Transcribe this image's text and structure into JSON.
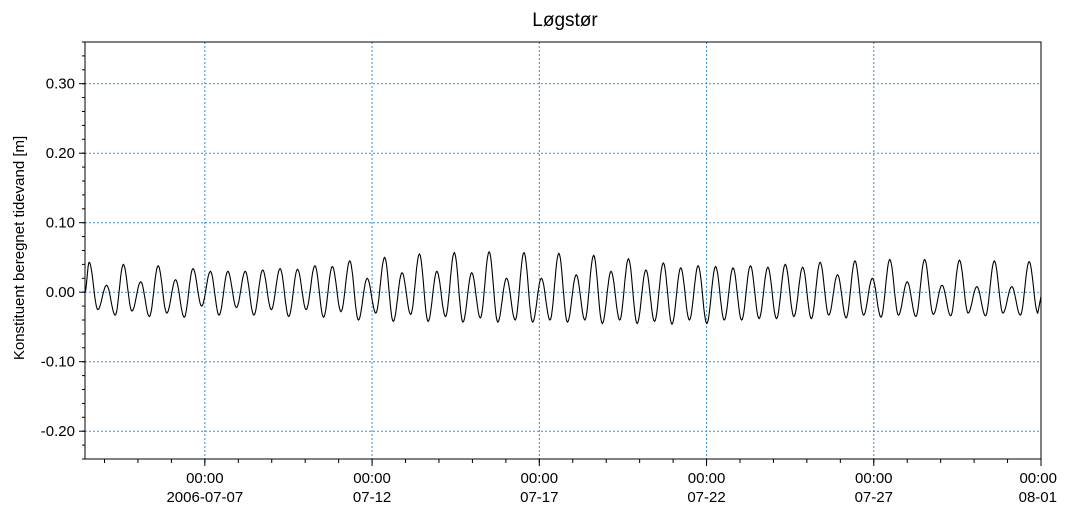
{
  "chart_data": {
    "type": "line",
    "title": "Løgstør",
    "xlabel": "",
    "ylabel": "Konstituent beregnet tidevand [m]",
    "x_range": [
      "2006-07-03T10:00",
      "2006-08-01T00:00"
    ],
    "ylim": [
      -0.24,
      0.36
    ],
    "y_ticks": [
      -0.2,
      -0.1,
      0.0,
      0.1,
      0.2,
      0.3
    ],
    "y_tick_labels": [
      "-0.20",
      "-0.10",
      "0.00",
      "0.10",
      "0.20",
      "0.30"
    ],
    "x_ticks": [
      {
        "date": "2006-07-07T00:00",
        "time": "00:00",
        "label": "2006-07-07"
      },
      {
        "date": "2006-07-12T00:00",
        "time": "00:00",
        "label": "07-12"
      },
      {
        "date": "2006-07-17T00:00",
        "time": "00:00",
        "label": "07-17"
      },
      {
        "date": "2006-07-22T00:00",
        "time": "00:00",
        "label": "07-22"
      },
      {
        "date": "2006-07-27T00:00",
        "time": "00:00",
        "label": "07-27"
      },
      {
        "date": "2006-08-01T00:00",
        "time": "00:00",
        "label": "08-01"
      }
    ],
    "grid": true,
    "legend": "none",
    "colors": {
      "line": "#000000",
      "grid": "#3a8fd9",
      "axes": "#000000"
    },
    "series": [
      {
        "values_description_free": true,
        "x": [
          "2006-07-03T13:00",
          "2006-07-04T01:30",
          "2006-07-04T13:30",
          "2006-07-05T02:00",
          "2006-07-05T14:30",
          "2006-07-06T03:00",
          "2006-07-06T15:30",
          "2006-07-07T04:00",
          "2006-07-07T16:30",
          "2006-07-08T05:00",
          "2006-07-08T17:30",
          "2006-07-09T06:00",
          "2006-07-09T18:30",
          "2006-07-10T07:00",
          "2006-07-10T19:30",
          "2006-07-11T08:00",
          "2006-07-11T20:30",
          "2006-07-12T09:00",
          "2006-07-12T21:30",
          "2006-07-13T10:00",
          "2006-07-13T22:30",
          "2006-07-14T11:00",
          "2006-07-14T23:30",
          "2006-07-15T12:00",
          "2006-07-16T00:30",
          "2006-07-16T13:00",
          "2006-07-17T01:30",
          "2006-07-17T14:00",
          "2006-07-18T02:30",
          "2006-07-18T15:00",
          "2006-07-19T03:30",
          "2006-07-19T16:00",
          "2006-07-20T04:30",
          "2006-07-20T17:00",
          "2006-07-21T05:30",
          "2006-07-21T18:00",
          "2006-07-22T06:30",
          "2006-07-22T19:00",
          "2006-07-23T07:30",
          "2006-07-23T20:00",
          "2006-07-24T08:30",
          "2006-07-24T21:00",
          "2006-07-25T09:30",
          "2006-07-25T22:00",
          "2006-07-26T10:30",
          "2006-07-26T23:00",
          "2006-07-27T11:30",
          "2006-07-28T00:00",
          "2006-07-28T12:30",
          "2006-07-29T01:00",
          "2006-07-29T13:30",
          "2006-07-30T02:00",
          "2006-07-30T14:30",
          "2006-07-31T03:00",
          "2006-07-31T15:30"
        ],
        "high": [
          0.043,
          0.01,
          0.04,
          0.015,
          0.038,
          0.018,
          0.034,
          0.03,
          0.03,
          0.03,
          0.032,
          0.034,
          0.033,
          0.038,
          0.037,
          0.045,
          0.02,
          0.05,
          0.028,
          0.055,
          0.03,
          0.057,
          0.028,
          0.058,
          0.02,
          0.057,
          0.02,
          0.056,
          0.025,
          0.053,
          0.03,
          0.048,
          0.032,
          0.042,
          0.035,
          0.038,
          0.037,
          0.035,
          0.038,
          0.036,
          0.04,
          0.036,
          0.043,
          0.025,
          0.045,
          0.02,
          0.047,
          0.015,
          0.047,
          0.01,
          0.046,
          0.008,
          0.045,
          0.008,
          0.044
        ],
        "low": [
          -0.025,
          -0.033,
          -0.027,
          -0.035,
          -0.03,
          -0.036,
          -0.02,
          -0.033,
          -0.022,
          -0.033,
          -0.025,
          -0.035,
          -0.025,
          -0.036,
          -0.028,
          -0.04,
          -0.03,
          -0.042,
          -0.032,
          -0.042,
          -0.035,
          -0.043,
          -0.037,
          -0.043,
          -0.04,
          -0.043,
          -0.04,
          -0.043,
          -0.04,
          -0.045,
          -0.04,
          -0.045,
          -0.042,
          -0.046,
          -0.04,
          -0.045,
          -0.04,
          -0.04,
          -0.038,
          -0.038,
          -0.035,
          -0.038,
          -0.033,
          -0.037,
          -0.033,
          -0.036,
          -0.033,
          -0.035,
          -0.032,
          -0.034,
          -0.03,
          -0.034,
          -0.03,
          -0.033,
          -0.03
        ]
      }
    ]
  }
}
